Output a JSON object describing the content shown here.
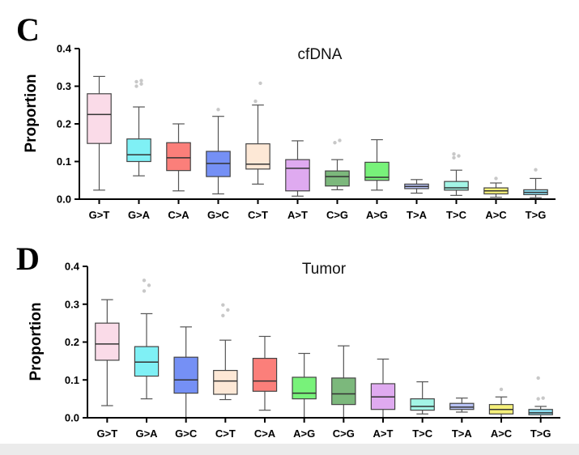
{
  "chart_data": [
    {
      "type": "box",
      "panel": "C",
      "title": "cfDNA",
      "xlabel": "",
      "ylabel": "Proportion",
      "ylim": [
        0,
        0.4
      ],
      "yticks": [
        "0.0",
        "0.1",
        "0.2",
        "0.3",
        "0.4"
      ],
      "categories": [
        "G>T",
        "G>A",
        "C>A",
        "G>C",
        "C>T",
        "A>T",
        "C>G",
        "A>G",
        "T>A",
        "T>C",
        "A>C",
        "T>G"
      ],
      "colors": [
        "#fadbe8",
        "#7ff0f5",
        "#fb7f7a",
        "#7590f5",
        "#fde8d6",
        "#dfaaf0",
        "#7cb87c",
        "#78f27a",
        "#b8c2f5",
        "#a3f5e6",
        "#f5f07a",
        "#8ee0f3"
      ],
      "boxes": [
        {
          "min": 0.024,
          "q1": 0.148,
          "median": 0.225,
          "q3": 0.28,
          "max": 0.326,
          "outliers": []
        },
        {
          "min": 0.062,
          "q1": 0.1,
          "median": 0.118,
          "q3": 0.16,
          "max": 0.245,
          "outliers": [
            0.3,
            0.306,
            0.312,
            0.315
          ]
        },
        {
          "min": 0.022,
          "q1": 0.076,
          "median": 0.11,
          "q3": 0.15,
          "max": 0.2,
          "outliers": []
        },
        {
          "min": 0.014,
          "q1": 0.06,
          "median": 0.095,
          "q3": 0.127,
          "max": 0.22,
          "outliers": [
            0.238
          ]
        },
        {
          "min": 0.04,
          "q1": 0.08,
          "median": 0.093,
          "q3": 0.147,
          "max": 0.25,
          "outliers": [
            0.26,
            0.308
          ]
        },
        {
          "min": 0.008,
          "q1": 0.022,
          "median": 0.082,
          "q3": 0.105,
          "max": 0.155,
          "outliers": []
        },
        {
          "min": 0.025,
          "q1": 0.035,
          "median": 0.06,
          "q3": 0.075,
          "max": 0.105,
          "outliers": [
            0.15,
            0.156
          ]
        },
        {
          "min": 0.024,
          "q1": 0.05,
          "median": 0.058,
          "q3": 0.098,
          "max": 0.158,
          "outliers": []
        },
        {
          "min": 0.016,
          "q1": 0.028,
          "median": 0.034,
          "q3": 0.04,
          "max": 0.052,
          "outliers": []
        },
        {
          "min": 0.01,
          "q1": 0.024,
          "median": 0.03,
          "q3": 0.047,
          "max": 0.077,
          "outliers": [
            0.11,
            0.115,
            0.12
          ]
        },
        {
          "min": 0.005,
          "q1": 0.014,
          "median": 0.022,
          "q3": 0.03,
          "max": 0.043,
          "outliers": [
            0.055
          ]
        },
        {
          "min": 0.004,
          "q1": 0.012,
          "median": 0.018,
          "q3": 0.025,
          "max": 0.055,
          "outliers": [
            0.078
          ]
        }
      ]
    },
    {
      "type": "box",
      "panel": "D",
      "title": "Tumor",
      "xlabel": "",
      "ylabel": "Proportion",
      "ylim": [
        0,
        0.4
      ],
      "yticks": [
        "0.0",
        "0.1",
        "0.2",
        "0.3",
        "0.4"
      ],
      "categories": [
        "G>T",
        "G>A",
        "G>C",
        "C>T",
        "C>A",
        "A>G",
        "C>G",
        "A>T",
        "T>C",
        "T>A",
        "A>C",
        "T>G"
      ],
      "colors": [
        "#fadbe8",
        "#7ff0f5",
        "#7590f5",
        "#fde8d6",
        "#fb7f7a",
        "#78f27a",
        "#7cb87c",
        "#dfaaf0",
        "#a3f5e6",
        "#b8c2f5",
        "#f5f07a",
        "#8ee0f3"
      ],
      "boxes": [
        {
          "min": 0.032,
          "q1": 0.152,
          "median": 0.195,
          "q3": 0.25,
          "max": 0.312,
          "outliers": []
        },
        {
          "min": 0.05,
          "q1": 0.11,
          "median": 0.147,
          "q3": 0.188,
          "max": 0.275,
          "outliers": [
            0.335,
            0.35,
            0.363
          ]
        },
        {
          "min": 0.0,
          "q1": 0.065,
          "median": 0.1,
          "q3": 0.16,
          "max": 0.24,
          "outliers": []
        },
        {
          "min": 0.048,
          "q1": 0.062,
          "median": 0.097,
          "q3": 0.125,
          "max": 0.205,
          "outliers": [
            0.27,
            0.285,
            0.298
          ]
        },
        {
          "min": 0.02,
          "q1": 0.07,
          "median": 0.097,
          "q3": 0.157,
          "max": 0.215,
          "outliers": []
        },
        {
          "min": 0.0,
          "q1": 0.05,
          "median": 0.065,
          "q3": 0.107,
          "max": 0.17,
          "outliers": []
        },
        {
          "min": 0.0,
          "q1": 0.035,
          "median": 0.063,
          "q3": 0.105,
          "max": 0.19,
          "outliers": []
        },
        {
          "min": 0.0,
          "q1": 0.022,
          "median": 0.055,
          "q3": 0.09,
          "max": 0.155,
          "outliers": []
        },
        {
          "min": 0.01,
          "q1": 0.02,
          "median": 0.03,
          "q3": 0.05,
          "max": 0.095,
          "outliers": []
        },
        {
          "min": 0.015,
          "q1": 0.022,
          "median": 0.028,
          "q3": 0.038,
          "max": 0.052,
          "outliers": []
        },
        {
          "min": 0.0,
          "q1": 0.01,
          "median": 0.022,
          "q3": 0.035,
          "max": 0.055,
          "outliers": [
            0.075
          ]
        },
        {
          "min": 0.0,
          "q1": 0.008,
          "median": 0.013,
          "q3": 0.022,
          "max": 0.03,
          "outliers": [
            0.05,
            0.052,
            0.105
          ]
        }
      ]
    }
  ]
}
